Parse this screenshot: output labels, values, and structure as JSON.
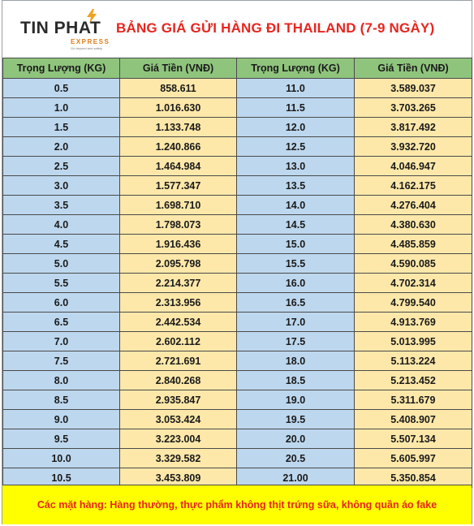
{
  "header": {
    "logo_main": "TIN PHAT",
    "logo_sub": "EXPRESS",
    "logo_tagline": "Go beyond and safety",
    "title": "BẢNG GIÁ GỬI HÀNG ĐI THAILAND (7-9 NGÀY)"
  },
  "table": {
    "columns": [
      "Trọng Lượng (KG)",
      "Giá Tiền (VNĐ)",
      "Trọng Lượng (KG)",
      "Giá Tiền (VNĐ)"
    ],
    "rows": [
      [
        "0.5",
        "858.611",
        "11.0",
        "3.589.037"
      ],
      [
        "1.0",
        "1.016.630",
        "11.5",
        "3.703.265"
      ],
      [
        "1.5",
        "1.133.748",
        "12.0",
        "3.817.492"
      ],
      [
        "2.0",
        "1.240.866",
        "12.5",
        "3.932.720"
      ],
      [
        "2.5",
        "1.464.984",
        "13.0",
        "4.046.947"
      ],
      [
        "3.0",
        "1.577.347",
        "13.5",
        "4.162.175"
      ],
      [
        "3.5",
        "1.698.710",
        "14.0",
        "4.276.404"
      ],
      [
        "4.0",
        "1.798.073",
        "14.5",
        "4.380.630"
      ],
      [
        "4.5",
        "1.916.436",
        "15.0",
        "4.485.859"
      ],
      [
        "5.0",
        "2.095.798",
        "15.5",
        "4.590.085"
      ],
      [
        "5.5",
        "2.214.377",
        "16.0",
        "4.702.314"
      ],
      [
        "6.0",
        "2.313.956",
        "16.5",
        "4.799.540"
      ],
      [
        "6.5",
        "2.442.534",
        "17.0",
        "4.913.769"
      ],
      [
        "7.0",
        "2.602.112",
        "17.5",
        "5.013.995"
      ],
      [
        "7.5",
        "2.721.691",
        "18.0",
        "5.113.224"
      ],
      [
        "8.0",
        "2.840.268",
        "18.5",
        "5.213.452"
      ],
      [
        "8.5",
        "2.935.847",
        "19.0",
        "5.311.679"
      ],
      [
        "9.0",
        "3.053.424",
        "19.5",
        "5.408.907"
      ],
      [
        "9.5",
        "3.223.004",
        "20.0",
        "5.507.134"
      ],
      [
        "10.0",
        "3.329.582",
        "20.5",
        "5.605.997"
      ],
      [
        "10.5",
        "3.453.809",
        "21.00",
        "5.350.854"
      ]
    ]
  },
  "footer": {
    "note": "Các mặt hàng: Hàng thường, thực phẩm không thịt trứng sữa, không quần áo fake"
  },
  "colors": {
    "title": "#e8251e",
    "header_row": "#8fc47d",
    "weight_cell": "#bdd7ee",
    "price_cell": "#fde8a9",
    "footer_bg": "#ffff00",
    "logo_accent": "#e07b17"
  },
  "icons": {
    "logo": "lightning-bolt-icon"
  }
}
